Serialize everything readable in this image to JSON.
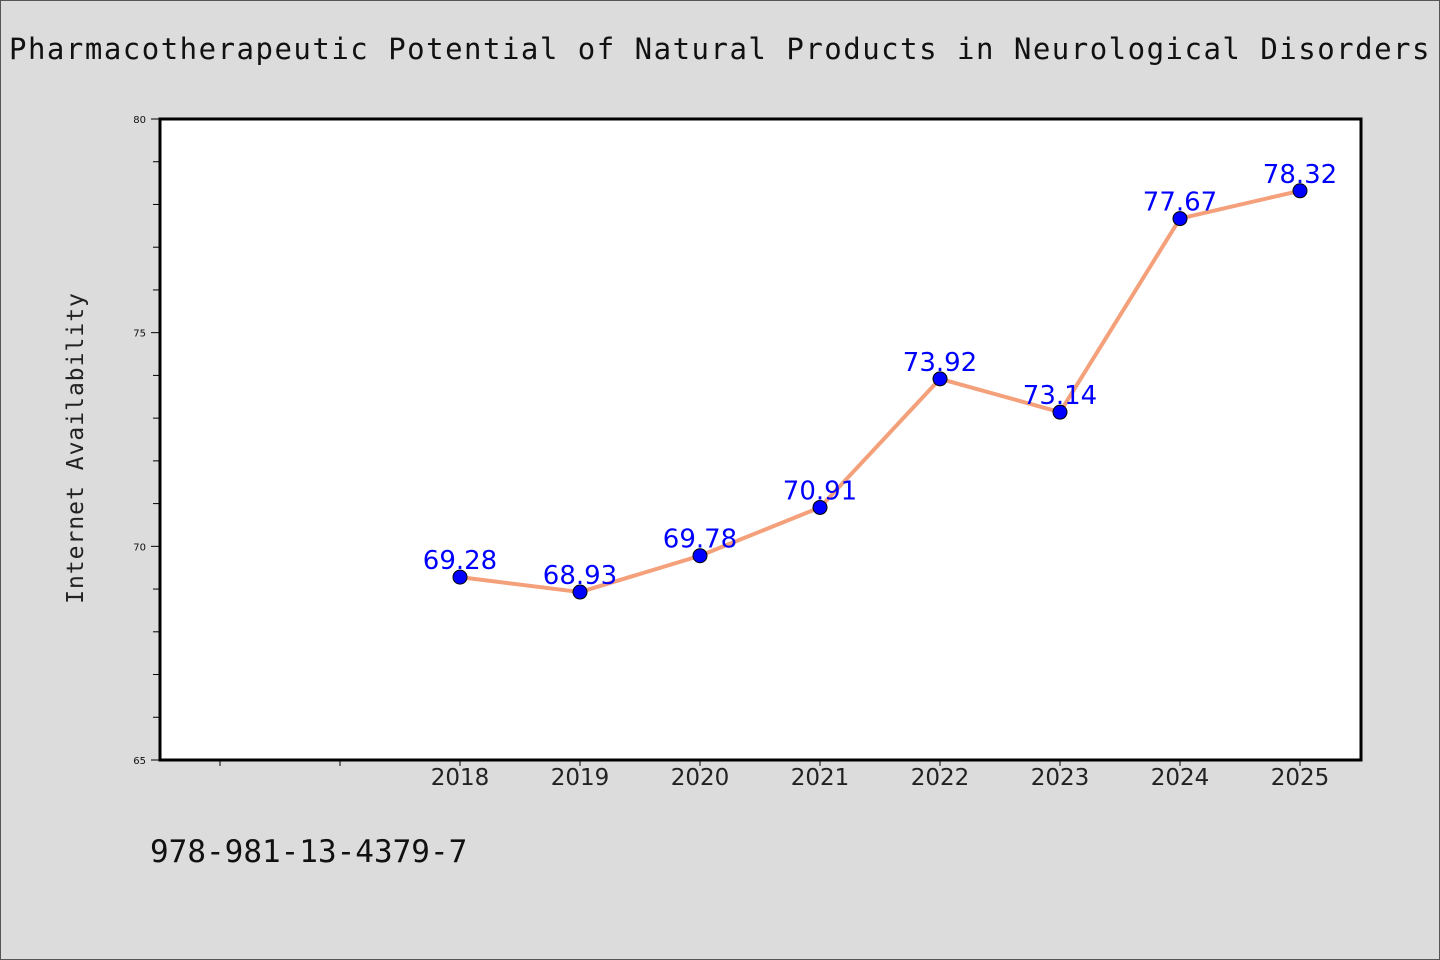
{
  "chart_data": {
    "type": "line",
    "title": "Pharmacotherapeutic Potential of Natural Products in Neurological Disorders",
    "xlabel": "",
    "ylabel": "Internet Availability",
    "categories": [
      "2018",
      "2019",
      "2020",
      "2021",
      "2022",
      "2023",
      "2024",
      "2025"
    ],
    "series": [
      {
        "values": [
          69.28,
          68.93,
          69.78,
          70.91,
          73.92,
          73.14,
          77.67,
          78.32
        ],
        "labels": [
          "69.28",
          "68.93",
          "69.78",
          "70.91",
          "73.92",
          "73.14",
          "77.67",
          "78.32"
        ]
      }
    ],
    "ylim": [
      65,
      80
    ],
    "yticks": [
      "65",
      "70",
      "75",
      "80"
    ],
    "grid": false,
    "line_color": "#f4a07a",
    "marker_color": "#0000ff"
  },
  "footer": {
    "isbn": "978-981-13-4379-7"
  }
}
